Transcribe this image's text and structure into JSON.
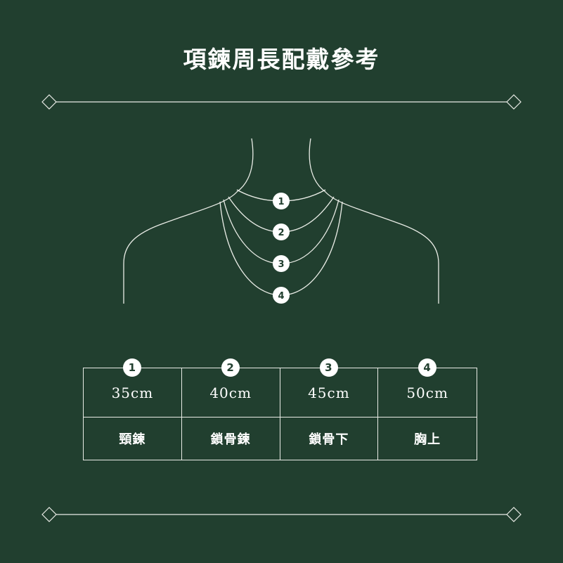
{
  "title": "項鍊周長配戴參考",
  "markers": [
    "1",
    "2",
    "3",
    "4"
  ],
  "sizes": [
    {
      "number": "1",
      "length": "35cm",
      "name": "頸鍊"
    },
    {
      "number": "2",
      "length": "40cm",
      "name": "鎖骨鍊"
    },
    {
      "number": "3",
      "length": "45cm",
      "name": "鎖骨下"
    },
    {
      "number": "4",
      "length": "50cm",
      "name": "胸上"
    }
  ],
  "colors": {
    "background": "#213f2f",
    "line": "#e9ece6",
    "text": "#ffffff"
  }
}
